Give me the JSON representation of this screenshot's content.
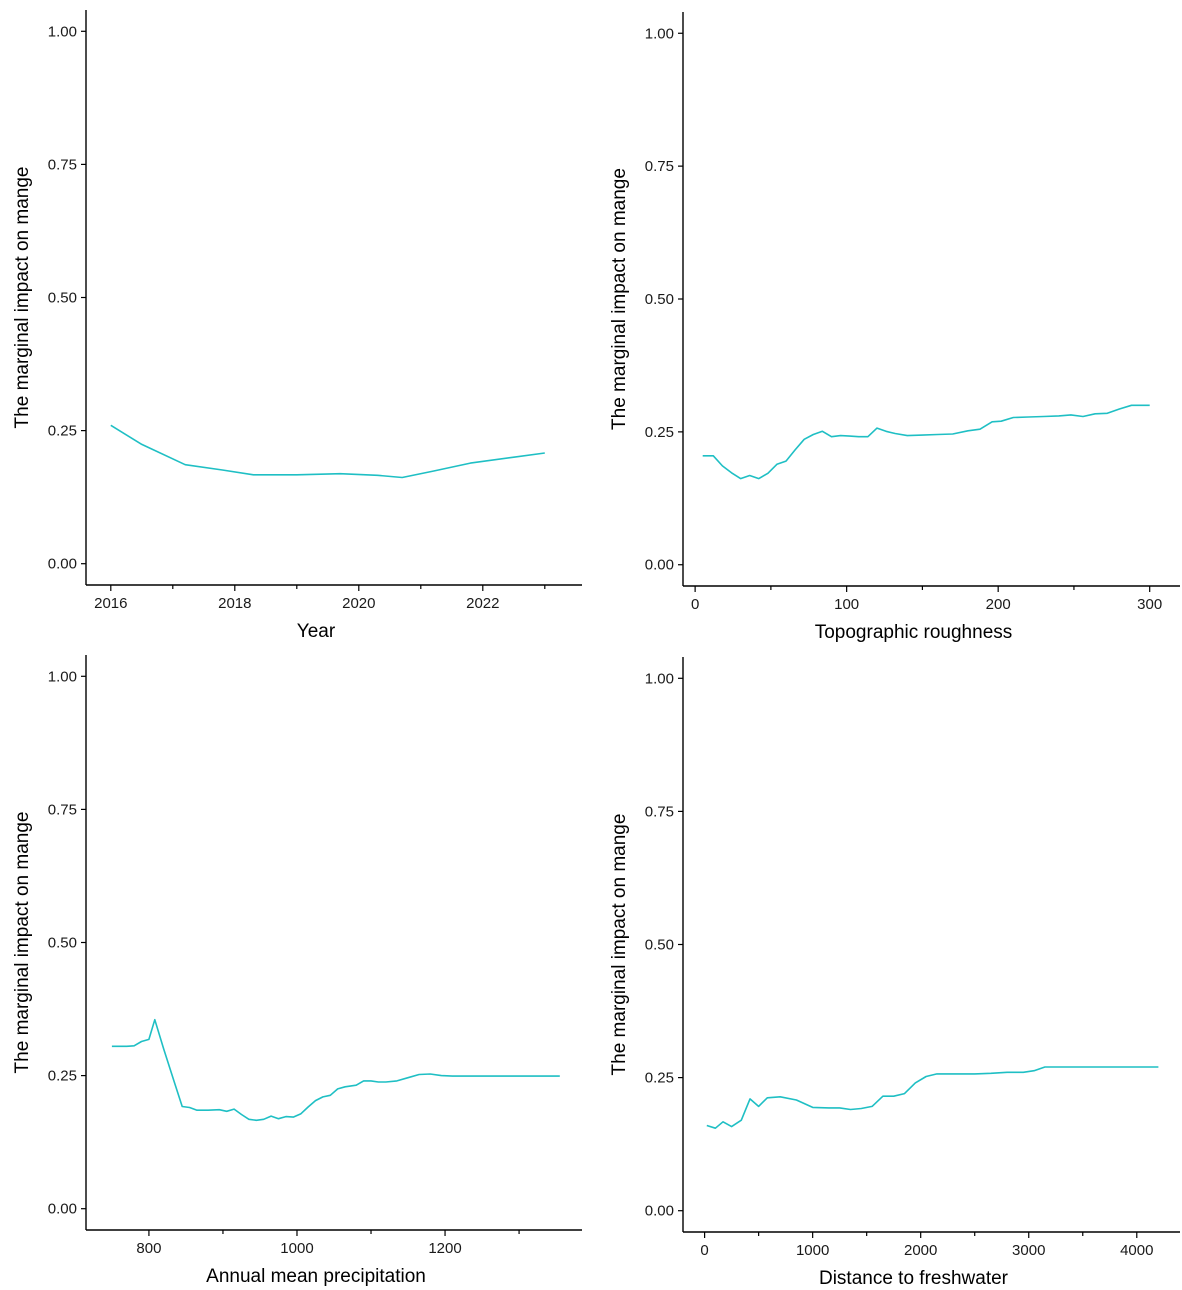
{
  "chart_data": [
    {
      "type": "line",
      "xlabel": "Year",
      "ylabel": "The marginal impact on mange",
      "xlim": [
        2015.6,
        2023.6
      ],
      "ylim": [
        -0.04,
        1.04
      ],
      "xticks": [
        2016,
        2018,
        2020,
        2022
      ],
      "xtick_labels": [
        "2016",
        "2018",
        "2020",
        "2022"
      ],
      "xminor": [
        2017,
        2019,
        2021,
        2023
      ],
      "yticks": [
        0,
        0.25,
        0.5,
        0.75,
        1
      ],
      "ytick_labels": [
        "0.00",
        "0.25",
        "0.50",
        "0.75",
        "1.00"
      ],
      "color": "#1fbfc4",
      "x": [
        2016.0,
        2016.5,
        2017.2,
        2017.8,
        2018.3,
        2019.0,
        2019.7,
        2020.3,
        2020.7,
        2021.2,
        2021.8,
        2022.5,
        2023.0
      ],
      "y": [
        0.26,
        0.224,
        0.186,
        0.176,
        0.167,
        0.167,
        0.169,
        0.166,
        0.162,
        0.174,
        0.189,
        0.2,
        0.208
      ]
    },
    {
      "type": "line",
      "xlabel": "Topographic roughness",
      "ylabel": "The marginal impact on mange",
      "xlim": [
        -8,
        320
      ],
      "ylim": [
        -0.04,
        1.04
      ],
      "xticks": [
        0,
        100,
        200,
        300
      ],
      "xtick_labels": [
        "0",
        "100",
        "200",
        "300"
      ],
      "xminor": [
        50,
        150,
        250
      ],
      "yticks": [
        0,
        0.25,
        0.5,
        0.75,
        1
      ],
      "ytick_labels": [
        "0.00",
        "0.25",
        "0.50",
        "0.75",
        "1.00"
      ],
      "color": "#1fbfc4",
      "x": [
        5,
        12,
        18,
        24,
        30,
        36,
        42,
        48,
        54,
        60,
        66,
        72,
        78,
        84,
        90,
        96,
        102,
        108,
        114,
        120,
        126,
        132,
        140,
        150,
        160,
        170,
        180,
        188,
        196,
        202,
        210,
        220,
        230,
        240,
        248,
        256,
        264,
        272,
        280,
        288,
        300
      ],
      "y": [
        0.205,
        0.205,
        0.186,
        0.173,
        0.162,
        0.168,
        0.162,
        0.172,
        0.189,
        0.195,
        0.216,
        0.236,
        0.245,
        0.251,
        0.241,
        0.243,
        0.242,
        0.241,
        0.241,
        0.257,
        0.251,
        0.247,
        0.243,
        0.244,
        0.245,
        0.246,
        0.252,
        0.255,
        0.269,
        0.27,
        0.277,
        0.278,
        0.279,
        0.28,
        0.282,
        0.279,
        0.284,
        0.285,
        0.293,
        0.3,
        0.3
      ]
    },
    {
      "type": "line",
      "xlabel": "Annual mean precipitation",
      "ylabel": "The marginal impact on mange",
      "xlim": [
        715,
        1385
      ],
      "ylim": [
        -0.04,
        1.04
      ],
      "xticks": [
        800,
        1000,
        1200
      ],
      "xtick_labels": [
        "800",
        "1000",
        "1200"
      ],
      "xminor": [
        900,
        1100,
        1300
      ],
      "yticks": [
        0,
        0.25,
        0.5,
        0.75,
        1
      ],
      "ytick_labels": [
        "0.00",
        "0.25",
        "0.50",
        "0.75",
        "1.00"
      ],
      "color": "#1fbfc4",
      "x": [
        750,
        770,
        780,
        790,
        800,
        808,
        820,
        835,
        845,
        855,
        865,
        880,
        895,
        905,
        915,
        925,
        935,
        945,
        955,
        965,
        975,
        985,
        995,
        1005,
        1015,
        1025,
        1035,
        1045,
        1055,
        1065,
        1080,
        1090,
        1100,
        1110,
        1120,
        1135,
        1150,
        1165,
        1180,
        1195,
        1210,
        1250,
        1300,
        1355
      ],
      "y": [
        0.305,
        0.305,
        0.306,
        0.314,
        0.318,
        0.355,
        0.3,
        0.235,
        0.192,
        0.19,
        0.185,
        0.185,
        0.186,
        0.183,
        0.187,
        0.177,
        0.168,
        0.166,
        0.168,
        0.174,
        0.169,
        0.173,
        0.172,
        0.178,
        0.191,
        0.203,
        0.21,
        0.213,
        0.225,
        0.229,
        0.232,
        0.24,
        0.24,
        0.238,
        0.238,
        0.24,
        0.246,
        0.252,
        0.253,
        0.25,
        0.249,
        0.249,
        0.249,
        0.249
      ]
    },
    {
      "type": "line",
      "xlabel": "Distance to freshwater",
      "ylabel": "The marginal impact on mange",
      "xlim": [
        -200,
        4400
      ],
      "ylim": [
        -0.04,
        1.04
      ],
      "xticks": [
        0,
        1000,
        2000,
        3000,
        4000
      ],
      "xtick_labels": [
        "0",
        "1000",
        "2000",
        "3000",
        "4000"
      ],
      "xminor": [
        500,
        1500,
        2500,
        3500
      ],
      "yticks": [
        0,
        0.25,
        0.5,
        0.75,
        1
      ],
      "ytick_labels": [
        "0.00",
        "0.25",
        "0.50",
        "0.75",
        "1.00"
      ],
      "color": "#1fbfc4",
      "x": [
        20,
        100,
        170,
        250,
        340,
        420,
        500,
        580,
        700,
        850,
        1000,
        1150,
        1250,
        1350,
        1450,
        1550,
        1650,
        1750,
        1850,
        1950,
        2050,
        2150,
        2300,
        2500,
        2650,
        2800,
        2950,
        3050,
        3150,
        3400,
        3800,
        4200
      ],
      "y": [
        0.16,
        0.155,
        0.167,
        0.158,
        0.17,
        0.21,
        0.196,
        0.212,
        0.214,
        0.208,
        0.194,
        0.193,
        0.193,
        0.19,
        0.192,
        0.196,
        0.215,
        0.215,
        0.22,
        0.24,
        0.252,
        0.257,
        0.257,
        0.257,
        0.258,
        0.26,
        0.26,
        0.263,
        0.27,
        0.27,
        0.27,
        0.27
      ]
    }
  ]
}
